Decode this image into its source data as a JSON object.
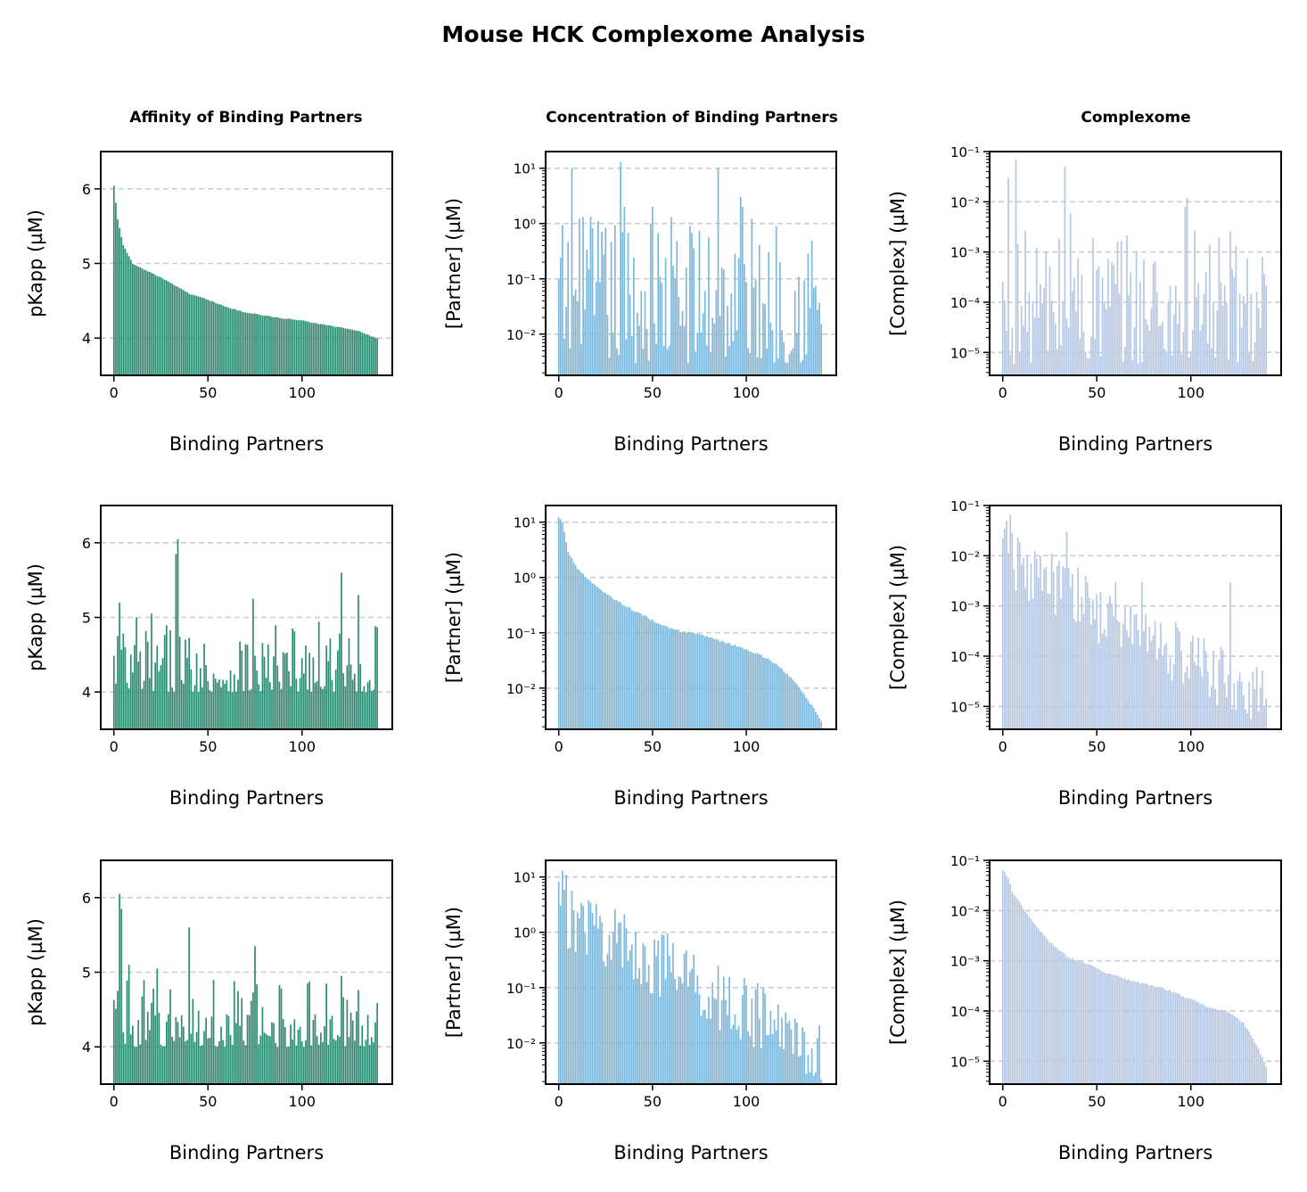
{
  "figure": {
    "title": "Mouse HCK Complexome Analysis",
    "column_titles": [
      "Affinity of Binding Partners",
      "Concentration of Binding Partners",
      "Complexome"
    ],
    "colors": {
      "affinity": "#2e8b72",
      "concentration": "#7fb7d9",
      "complex": "#b7c8e3",
      "grid": "#cccccc"
    }
  },
  "chart_data": [
    {
      "type": "bar",
      "panel": "affinity-sorted-by-affinity",
      "xlabel": "Binding Partners",
      "ylabel": "pKapp (µM)",
      "ylim": [
        3.5,
        6.5
      ],
      "yscale": "linear",
      "yticks": [
        4,
        5,
        6
      ],
      "ytick_labels": [
        "4",
        "5",
        "6"
      ],
      "xticks": [
        0,
        50,
        100
      ],
      "xtick_labels": [
        "0",
        "50",
        "100"
      ],
      "n": 141,
      "grid": "y-dashed",
      "description": "sorted descending",
      "start": 6.05,
      "end": 4.0,
      "values_anchor": [
        [
          0,
          6.05
        ],
        [
          2,
          5.6
        ],
        [
          5,
          5.25
        ],
        [
          10,
          5.0
        ],
        [
          20,
          4.88
        ],
        [
          30,
          4.75
        ],
        [
          40,
          4.6
        ],
        [
          50,
          4.52
        ],
        [
          60,
          4.42
        ],
        [
          70,
          4.35
        ],
        [
          80,
          4.31
        ],
        [
          90,
          4.27
        ],
        [
          100,
          4.24
        ],
        [
          110,
          4.19
        ],
        [
          120,
          4.15
        ],
        [
          130,
          4.1
        ],
        [
          135,
          4.05
        ],
        [
          140,
          4.0
        ]
      ]
    },
    {
      "type": "bar",
      "panel": "concentration-sorted-by-affinity",
      "xlabel": "Binding Partners",
      "ylabel": "[Partner] (µM)",
      "ylim": [
        0.0018,
        20
      ],
      "yscale": "log",
      "yticks": [
        0.01,
        0.1,
        1,
        10
      ],
      "ytick_labels": [
        "10⁻²",
        "10⁻¹",
        "10⁰",
        "10¹"
      ],
      "xticks": [
        0,
        50,
        100
      ],
      "xtick_labels": [
        "0",
        "50",
        "100"
      ],
      "n": 141,
      "grid": "y-dashed",
      "peaks": [
        [
          7,
          10
        ],
        [
          13,
          1.3
        ],
        [
          33,
          13
        ],
        [
          35,
          2
        ],
        [
          50,
          2
        ],
        [
          60,
          1.3
        ],
        [
          85,
          10
        ],
        [
          97,
          3
        ],
        [
          98,
          2
        ]
      ],
      "range": [
        0.003,
        1.5
      ]
    },
    {
      "type": "bar",
      "panel": "complex-sorted-by-affinity",
      "xlabel": "Binding Partners",
      "ylabel": "[Complex] (µM)",
      "ylim": [
        3.5e-06,
        0.1
      ],
      "yscale": "log",
      "yticks": [
        1e-05,
        0.0001,
        0.001,
        0.01,
        0.1
      ],
      "ytick_labels": [
        "10⁻⁵",
        "10⁻⁴",
        "10⁻³",
        "10⁻²",
        "10⁻¹"
      ],
      "xticks": [
        0,
        50,
        100
      ],
      "xtick_labels": [
        "0",
        "50",
        "100"
      ],
      "n": 141,
      "grid": "y-dashed",
      "peaks": [
        [
          3,
          0.03
        ],
        [
          7,
          0.07
        ],
        [
          33,
          0.05
        ],
        [
          36,
          0.006
        ],
        [
          97,
          0.008
        ],
        [
          98,
          0.012
        ]
      ],
      "range": [
        6e-06,
        0.003
      ]
    },
    {
      "type": "bar",
      "panel": "affinity-sorted-by-concentration",
      "xlabel": "Binding Partners",
      "ylabel": "pKapp (µM)",
      "ylim": [
        3.5,
        6.5
      ],
      "yscale": "linear",
      "yticks": [
        4,
        5,
        6
      ],
      "ytick_labels": [
        "4",
        "5",
        "6"
      ],
      "xticks": [
        0,
        50,
        100
      ],
      "xtick_labels": [
        "0",
        "50",
        "100"
      ],
      "n": 141,
      "grid": "y-dashed",
      "peaks": [
        [
          2,
          4.75
        ],
        [
          3,
          5.2
        ],
        [
          12,
          5.0
        ],
        [
          20,
          5.05
        ],
        [
          33,
          5.85
        ],
        [
          34,
          6.05
        ],
        [
          74,
          5.25
        ],
        [
          121,
          5.6
        ],
        [
          130,
          5.3
        ]
      ],
      "range": [
        4.0,
        4.95
      ]
    },
    {
      "type": "bar",
      "panel": "concentration-sorted-by-concentration",
      "xlabel": "Binding Partners",
      "ylabel": "[Partner] (µM)",
      "ylim": [
        0.0018,
        20
      ],
      "yscale": "log",
      "yticks": [
        0.01,
        0.1,
        1,
        10
      ],
      "ytick_labels": [
        "10⁻²",
        "10⁻¹",
        "10⁰",
        "10¹"
      ],
      "xticks": [
        0,
        50,
        100
      ],
      "xtick_labels": [
        "0",
        "50",
        "100"
      ],
      "n": 141,
      "grid": "y-dashed",
      "description": "sorted descending",
      "values_anchor": [
        [
          0,
          13
        ],
        [
          2,
          10
        ],
        [
          5,
          3
        ],
        [
          10,
          1.5
        ],
        [
          15,
          1.0
        ],
        [
          25,
          0.55
        ],
        [
          35,
          0.32
        ],
        [
          45,
          0.22
        ],
        [
          55,
          0.14
        ],
        [
          65,
          0.11
        ],
        [
          75,
          0.1
        ],
        [
          85,
          0.075
        ],
        [
          95,
          0.06
        ],
        [
          105,
          0.045
        ],
        [
          115,
          0.03
        ],
        [
          125,
          0.015
        ],
        [
          132,
          0.007
        ],
        [
          137,
          0.004
        ],
        [
          140,
          0.0025
        ]
      ]
    },
    {
      "type": "bar",
      "panel": "complex-sorted-by-concentration",
      "xlabel": "Binding Partners",
      "ylabel": "[Complex] (µM)",
      "ylim": [
        3.5e-06,
        0.1
      ],
      "yscale": "log",
      "yticks": [
        1e-05,
        0.0001,
        0.001,
        0.01,
        0.1
      ],
      "ytick_labels": [
        "10⁻⁵",
        "10⁻⁴",
        "10⁻³",
        "10⁻²",
        "10⁻¹"
      ],
      "xticks": [
        0,
        50,
        100
      ],
      "xtick_labels": [
        "0",
        "50",
        "100"
      ],
      "n": 141,
      "grid": "y-dashed",
      "peaks": [
        [
          2,
          0.05
        ],
        [
          4,
          0.065
        ],
        [
          13,
          0.01
        ],
        [
          20,
          0.01
        ],
        [
          34,
          0.03
        ],
        [
          60,
          0.003
        ],
        [
          74,
          0.003
        ],
        [
          121,
          0.003
        ]
      ],
      "trend": [
        0.01,
        1.5e-05
      ]
    },
    {
      "type": "bar",
      "panel": "affinity-sorted-by-complex",
      "xlabel": "Binding Partners",
      "ylabel": "pKapp (µM)",
      "ylim": [
        3.5,
        6.5
      ],
      "yscale": "linear",
      "yticks": [
        4,
        5,
        6
      ],
      "ytick_labels": [
        "4",
        "5",
        "6"
      ],
      "xticks": [
        0,
        50,
        100
      ],
      "xtick_labels": [
        "0",
        "50",
        "100"
      ],
      "n": 141,
      "grid": "y-dashed",
      "peaks": [
        [
          2,
          4.75
        ],
        [
          3,
          6.05
        ],
        [
          4,
          5.85
        ],
        [
          8,
          5.1
        ],
        [
          23,
          5.05
        ],
        [
          40,
          5.6
        ],
        [
          75,
          5.35
        ],
        [
          103,
          4.85
        ],
        [
          121,
          4.95
        ]
      ],
      "range": [
        4.0,
        4.9
      ]
    },
    {
      "type": "bar",
      "panel": "concentration-sorted-by-complex",
      "xlabel": "Binding Partners",
      "ylabel": "[Partner] (µM)",
      "ylim": [
        0.0018,
        20
      ],
      "yscale": "log",
      "yticks": [
        0.01,
        0.1,
        1,
        10
      ],
      "ytick_labels": [
        "10⁻²",
        "10⁻¹",
        "10⁰",
        "10¹"
      ],
      "xticks": [
        0,
        50,
        100
      ],
      "xtick_labels": [
        "0",
        "50",
        "100"
      ],
      "n": 141,
      "grid": "y-dashed",
      "peaks": [
        [
          2,
          13
        ],
        [
          4,
          11
        ],
        [
          8,
          2.5
        ],
        [
          13,
          3
        ],
        [
          33,
          1.5
        ],
        [
          36,
          1.2
        ]
      ],
      "trend": [
        3,
        0.008
      ]
    },
    {
      "type": "bar",
      "panel": "complex-sorted-by-complex",
      "xlabel": "Binding Partners",
      "ylabel": "[Complex] (µM)",
      "ylim": [
        3.5e-06,
        0.1
      ],
      "yscale": "log",
      "yticks": [
        1e-05,
        0.0001,
        0.001,
        0.01,
        0.1
      ],
      "ytick_labels": [
        "10⁻⁵",
        "10⁻⁴",
        "10⁻³",
        "10⁻²",
        "10⁻¹"
      ],
      "xticks": [
        0,
        50,
        100
      ],
      "xtick_labels": [
        "0",
        "50",
        "100"
      ],
      "n": 141,
      "grid": "y-dashed",
      "description": "sorted descending",
      "values_anchor": [
        [
          0,
          0.07
        ],
        [
          3,
          0.045
        ],
        [
          5,
          0.025
        ],
        [
          8,
          0.018
        ],
        [
          12,
          0.01
        ],
        [
          18,
          0.005
        ],
        [
          25,
          0.0025
        ],
        [
          35,
          0.0012
        ],
        [
          45,
          0.0009
        ],
        [
          55,
          0.0006
        ],
        [
          70,
          0.0004
        ],
        [
          85,
          0.0003
        ],
        [
          100,
          0.00018
        ],
        [
          110,
          0.00012
        ],
        [
          120,
          0.0001
        ],
        [
          128,
          6e-05
        ],
        [
          133,
          3e-05
        ],
        [
          137,
          1.5e-05
        ],
        [
          140,
          8e-06
        ]
      ]
    }
  ]
}
